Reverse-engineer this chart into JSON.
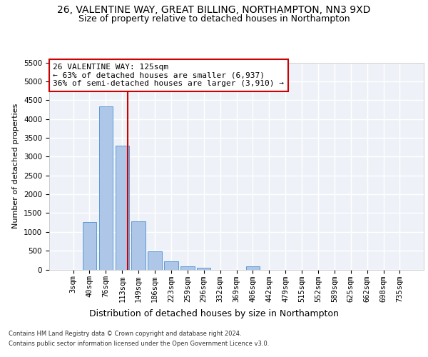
{
  "title1": "26, VALENTINE WAY, GREAT BILLING, NORTHAMPTON, NN3 9XD",
  "title2": "Size of property relative to detached houses in Northampton",
  "xlabel": "Distribution of detached houses by size in Northampton",
  "ylabel": "Number of detached properties",
  "categories": [
    "3sqm",
    "40sqm",
    "76sqm",
    "113sqm",
    "149sqm",
    "186sqm",
    "223sqm",
    "259sqm",
    "296sqm",
    "332sqm",
    "369sqm",
    "406sqm",
    "442sqm",
    "479sqm",
    "515sqm",
    "552sqm",
    "589sqm",
    "625sqm",
    "662sqm",
    "698sqm",
    "735sqm"
  ],
  "values": [
    0,
    1255,
    4340,
    3300,
    1280,
    490,
    210,
    90,
    50,
    0,
    0,
    90,
    0,
    0,
    0,
    0,
    0,
    0,
    0,
    0,
    0
  ],
  "bar_color": "#aec6e8",
  "bar_edge_color": "#5b9bd5",
  "background_color": "#eef2f8",
  "grid_color": "#ffffff",
  "annotation_text": "26 VALENTINE WAY: 125sqm\n← 63% of detached houses are smaller (6,937)\n36% of semi-detached houses are larger (3,910) →",
  "annotation_box_color": "#ffffff",
  "annotation_box_edge_color": "#cc0000",
  "vline_color": "#cc0000",
  "ylim": [
    0,
    5500
  ],
  "yticks": [
    0,
    500,
    1000,
    1500,
    2000,
    2500,
    3000,
    3500,
    4000,
    4500,
    5000,
    5500
  ],
  "footer1": "Contains HM Land Registry data © Crown copyright and database right 2024.",
  "footer2": "Contains public sector information licensed under the Open Government Licence v3.0.",
  "title1_fontsize": 10,
  "title2_fontsize": 9,
  "xlabel_fontsize": 9,
  "ylabel_fontsize": 8,
  "tick_fontsize": 7.5,
  "annotation_fontsize": 8,
  "footer_fontsize": 6
}
